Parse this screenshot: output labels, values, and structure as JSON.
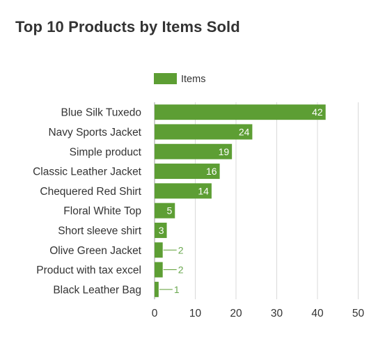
{
  "card": {
    "title": "Top 10 Products by Items Sold"
  },
  "chart_data": {
    "type": "bar",
    "orientation": "horizontal",
    "title": "Top 10 Products by Items Sold",
    "categories": [
      "Blue Silk Tuxedo",
      "Navy Sports Jacket",
      "Simple product",
      "Classic Leather Jacket",
      "Chequered Red Shirt",
      "Floral White Top",
      "Short sleeve shirt",
      "Olive Green Jacket",
      "Product with tax excel",
      "Black Leather Bag"
    ],
    "series": [
      {
        "name": "Items",
        "values": [
          42,
          24,
          19,
          16,
          14,
          5,
          3,
          2,
          2,
          1
        ]
      }
    ],
    "xlim": [
      0,
      50
    ],
    "xticks": [
      0,
      10,
      20,
      30,
      40,
      50
    ],
    "grid": true,
    "legend": "top-left",
    "bar_color": "#5d9e34"
  }
}
